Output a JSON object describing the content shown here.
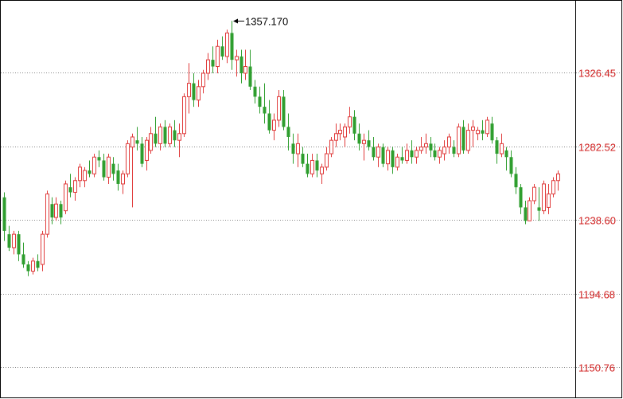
{
  "chart_data": {
    "type": "candlestick",
    "y_axis_side": "right",
    "y_ticks": [
      {
        "value": 1326.45,
        "label": "1326.45"
      },
      {
        "value": 1282.52,
        "label": "1282.52"
      },
      {
        "value": 1238.6,
        "label": "1238.60"
      },
      {
        "value": 1194.68,
        "label": "1194.68"
      },
      {
        "value": 1150.76,
        "label": "1150.76"
      }
    ],
    "ylim": [
      1143,
      1371
    ],
    "grid": "horizontal-dotted",
    "max_annotation": {
      "value": 1357.17,
      "label": "1357.170",
      "index": 48
    },
    "colors": {
      "up": "#e03a3a",
      "down": "#2e9e2e",
      "tick_label": "#d02020",
      "grid": "#888888",
      "frame": "#000000",
      "annotation": "#000000"
    },
    "candles": [
      [
        1252,
        1255,
        1226,
        1232
      ],
      [
        1230,
        1235,
        1220,
        1222
      ],
      [
        1222,
        1232,
        1218,
        1230
      ],
      [
        1230,
        1232,
        1214,
        1218
      ],
      [
        1218,
        1225,
        1210,
        1212
      ],
      [
        1212,
        1214,
        1205,
        1208
      ],
      [
        1208,
        1216,
        1206,
        1214
      ],
      [
        1214,
        1218,
        1208,
        1210
      ],
      [
        1212,
        1232,
        1208,
        1230
      ],
      [
        1230,
        1256,
        1228,
        1254
      ],
      [
        1248,
        1252,
        1236,
        1240
      ],
      [
        1240,
        1252,
        1238,
        1248
      ],
      [
        1248,
        1250,
        1236,
        1240
      ],
      [
        1244,
        1262,
        1242,
        1260
      ],
      [
        1258,
        1266,
        1252,
        1255
      ],
      [
        1255,
        1264,
        1250,
        1262
      ],
      [
        1262,
        1272,
        1258,
        1270
      ],
      [
        1262,
        1270,
        1258,
        1268
      ],
      [
        1268,
        1274,
        1264,
        1266
      ],
      [
        1266,
        1278,
        1264,
        1276
      ],
      [
        1276,
        1280,
        1270,
        1274
      ],
      [
        1274,
        1278,
        1262,
        1264
      ],
      [
        1264,
        1278,
        1260,
        1276
      ],
      [
        1272,
        1276,
        1262,
        1266
      ],
      [
        1268,
        1272,
        1256,
        1260
      ],
      [
        1260,
        1268,
        1254,
        1266
      ],
      [
        1266,
        1286,
        1264,
        1284
      ],
      [
        1282,
        1290,
        1246,
        1288
      ],
      [
        1286,
        1294,
        1280,
        1284
      ],
      [
        1284,
        1288,
        1270,
        1272
      ],
      [
        1274,
        1288,
        1268,
        1286
      ],
      [
        1280,
        1294,
        1278,
        1290
      ],
      [
        1290,
        1300,
        1282,
        1284
      ],
      [
        1284,
        1296,
        1280,
        1294
      ],
      [
        1294,
        1298,
        1282,
        1284
      ],
      [
        1284,
        1296,
        1282,
        1294
      ],
      [
        1292,
        1298,
        1282,
        1286
      ],
      [
        1286,
        1296,
        1276,
        1290
      ],
      [
        1290,
        1314,
        1288,
        1312
      ],
      [
        1312,
        1332,
        1302,
        1320
      ],
      [
        1320,
        1326,
        1306,
        1310
      ],
      [
        1310,
        1322,
        1306,
        1318
      ],
      [
        1318,
        1328,
        1314,
        1326
      ],
      [
        1326,
        1338,
        1322,
        1334
      ],
      [
        1334,
        1342,
        1326,
        1330
      ],
      [
        1330,
        1346,
        1326,
        1342
      ],
      [
        1342,
        1348,
        1334,
        1336
      ],
      [
        1336,
        1352,
        1332,
        1350
      ],
      [
        1350,
        1357.17,
        1328,
        1334
      ],
      [
        1334,
        1340,
        1324,
        1336
      ],
      [
        1336,
        1340,
        1320,
        1326
      ],
      [
        1326,
        1340,
        1322,
        1330
      ],
      [
        1330,
        1340,
        1316,
        1318
      ],
      [
        1318,
        1322,
        1308,
        1312
      ],
      [
        1312,
        1318,
        1302,
        1306
      ],
      [
        1306,
        1320,
        1296,
        1302
      ],
      [
        1302,
        1310,
        1290,
        1292
      ],
      [
        1292,
        1302,
        1286,
        1298
      ],
      [
        1298,
        1316,
        1294,
        1312
      ],
      [
        1312,
        1316,
        1292,
        1294
      ],
      [
        1294,
        1302,
        1280,
        1288
      ],
      [
        1284,
        1290,
        1272,
        1278
      ],
      [
        1278,
        1290,
        1270,
        1284
      ],
      [
        1278,
        1282,
        1270,
        1272
      ],
      [
        1272,
        1278,
        1264,
        1266
      ],
      [
        1266,
        1278,
        1264,
        1274
      ],
      [
        1274,
        1278,
        1264,
        1268
      ],
      [
        1266,
        1272,
        1260,
        1270
      ],
      [
        1270,
        1282,
        1268,
        1278
      ],
      [
        1278,
        1288,
        1276,
        1286
      ],
      [
        1286,
        1296,
        1282,
        1290
      ],
      [
        1290,
        1296,
        1286,
        1292
      ],
      [
        1288,
        1296,
        1282,
        1294
      ],
      [
        1294,
        1306,
        1290,
        1300
      ],
      [
        1300,
        1304,
        1286,
        1290
      ],
      [
        1290,
        1296,
        1280,
        1284
      ],
      [
        1284,
        1290,
        1274,
        1286
      ],
      [
        1286,
        1292,
        1280,
        1282
      ],
      [
        1282,
        1288,
        1274,
        1276
      ],
      [
        1276,
        1284,
        1270,
        1282
      ],
      [
        1282,
        1284,
        1270,
        1272
      ],
      [
        1272,
        1282,
        1268,
        1280
      ],
      [
        1280,
        1282,
        1266,
        1270
      ],
      [
        1270,
        1278,
        1268,
        1276
      ],
      [
        1276,
        1282,
        1272,
        1274
      ],
      [
        1274,
        1284,
        1272,
        1280
      ],
      [
        1280,
        1286,
        1272,
        1276
      ],
      [
        1276,
        1282,
        1272,
        1280
      ],
      [
        1280,
        1288,
        1278,
        1282
      ],
      [
        1282,
        1290,
        1278,
        1284
      ],
      [
        1284,
        1288,
        1276,
        1280
      ],
      [
        1280,
        1284,
        1274,
        1276
      ],
      [
        1276,
        1282,
        1272,
        1280
      ],
      [
        1278,
        1286,
        1274,
        1282
      ],
      [
        1282,
        1290,
        1278,
        1288
      ],
      [
        1282,
        1286,
        1276,
        1278
      ],
      [
        1278,
        1296,
        1276,
        1294
      ],
      [
        1294,
        1298,
        1278,
        1280
      ],
      [
        1280,
        1296,
        1278,
        1292
      ],
      [
        1292,
        1298,
        1282,
        1294
      ],
      [
        1290,
        1294,
        1286,
        1292
      ],
      [
        1292,
        1298,
        1286,
        1290
      ],
      [
        1290,
        1300,
        1288,
        1298
      ],
      [
        1296,
        1300,
        1284,
        1286
      ],
      [
        1286,
        1288,
        1272,
        1278
      ],
      [
        1278,
        1290,
        1276,
        1284
      ],
      [
        1280,
        1282,
        1268,
        1276
      ],
      [
        1276,
        1280,
        1264,
        1266
      ],
      [
        1266,
        1270,
        1254,
        1258
      ],
      [
        1258,
        1260,
        1242,
        1246
      ],
      [
        1246,
        1250,
        1236,
        1238
      ],
      [
        1238,
        1252,
        1240,
        1250
      ],
      [
        1250,
        1260,
        1248,
        1258
      ],
      [
        1246,
        1258,
        1238,
        1244
      ],
      [
        1244,
        1262,
        1242,
        1260
      ],
      [
        1246,
        1260,
        1242,
        1254
      ],
      [
        1254,
        1264,
        1252,
        1262
      ],
      [
        1262,
        1268,
        1256,
        1266
      ]
    ]
  }
}
